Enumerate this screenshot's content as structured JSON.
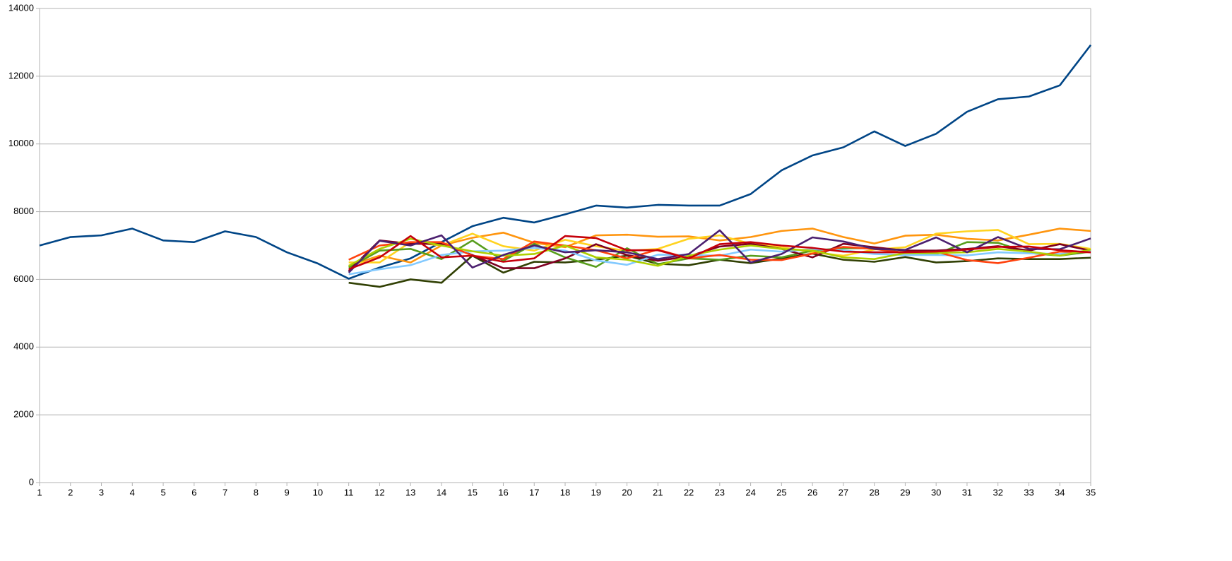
{
  "chart_data": {
    "type": "line",
    "x": [
      1,
      2,
      3,
      4,
      5,
      6,
      7,
      8,
      9,
      10,
      11,
      12,
      13,
      14,
      15,
      16,
      17,
      18,
      19,
      20,
      21,
      22,
      23,
      24,
      25,
      26,
      27,
      28,
      29,
      30,
      31,
      32,
      33,
      34,
      35
    ],
    "xlim": [
      1,
      35
    ],
    "xticks": [
      1,
      2,
      3,
      4,
      5,
      6,
      7,
      8,
      9,
      10,
      11,
      12,
      13,
      14,
      15,
      16,
      17,
      18,
      19,
      20,
      21,
      22,
      23,
      24,
      25,
      26,
      27,
      28,
      29,
      30,
      31,
      32,
      33,
      34,
      35
    ],
    "ylim": [
      0,
      14000
    ],
    "yticks": [
      0,
      2000,
      4000,
      6000,
      8000,
      10000,
      12000,
      14000
    ],
    "grid": true,
    "series": [
      {
        "color": "#004586",
        "values": [
          7000,
          7250,
          7300,
          7500,
          7150,
          7100,
          7420,
          7250,
          6800,
          6470,
          6020,
          6350,
          6620,
          7100,
          7570,
          7820,
          7680,
          7920,
          8180,
          8120,
          8200,
          8180,
          8180,
          8520,
          9220,
          9660,
          9900,
          10370,
          9940,
          10300,
          10950,
          11320,
          11400,
          11730,
          12920
        ]
      },
      {
        "color": "#314004",
        "values": [
          null,
          null,
          null,
          null,
          null,
          null,
          null,
          null,
          null,
          null,
          5900,
          5780,
          6000,
          5900,
          6700,
          6200,
          6520,
          6500,
          6580,
          6700,
          6460,
          6420,
          6580,
          6480,
          6620,
          6760,
          6580,
          6520,
          6660,
          6500,
          6540,
          6620,
          6600,
          6600,
          6640
        ]
      },
      {
        "color": "#ff950e",
        "values": [
          null,
          null,
          null,
          null,
          null,
          null,
          null,
          null,
          null,
          null,
          6400,
          6700,
          6500,
          7000,
          7230,
          7380,
          7080,
          6950,
          7300,
          7320,
          7260,
          7270,
          7150,
          7250,
          7430,
          7500,
          7250,
          7060,
          7290,
          7320,
          7200,
          7150,
          7320,
          7500,
          7430
        ]
      },
      {
        "color": "#ffd320",
        "values": [
          null,
          null,
          null,
          null,
          null,
          null,
          null,
          null,
          null,
          null,
          6500,
          6500,
          7100,
          7000,
          7350,
          6980,
          6850,
          7170,
          6980,
          6840,
          6900,
          7200,
          7300,
          7050,
          6950,
          6800,
          6700,
          6880,
          6950,
          7350,
          7420,
          7460,
          7040,
          7050,
          6900
        ]
      },
      {
        "color": "#579d1c",
        "values": [
          null,
          null,
          null,
          null,
          null,
          null,
          null,
          null,
          null,
          null,
          6350,
          6850,
          6900,
          6600,
          7150,
          6550,
          7050,
          6650,
          6370,
          6920,
          6450,
          6620,
          6580,
          6700,
          6650,
          6850,
          6920,
          6920,
          6780,
          6750,
          7100,
          7080,
          6780,
          6700,
          6820
        ]
      },
      {
        "color": "#7e0021",
        "values": [
          null,
          null,
          null,
          null,
          null,
          null,
          null,
          null,
          null,
          null,
          6250,
          7150,
          7050,
          7050,
          6720,
          6330,
          6330,
          6620,
          7040,
          6720,
          6550,
          6680,
          6970,
          7050,
          6900,
          6650,
          7050,
          6950,
          6850,
          6850,
          6900,
          6980,
          6850,
          7040,
          6850
        ]
      },
      {
        "color": "#83caff",
        "values": [
          null,
          null,
          null,
          null,
          null,
          null,
          null,
          null,
          null,
          null,
          6150,
          6300,
          6420,
          6720,
          6830,
          6850,
          6930,
          6850,
          6560,
          6430,
          6730,
          6720,
          6700,
          6880,
          6820,
          6890,
          6860,
          6750,
          6720,
          6720,
          6710,
          6800,
          6770,
          6750,
          6850
        ]
      },
      {
        "color": "#ff420e",
        "values": [
          null,
          null,
          null,
          null,
          null,
          null,
          null,
          null,
          null,
          null,
          6580,
          7000,
          7100,
          7100,
          6700,
          6600,
          7120,
          7000,
          6860,
          6620,
          6880,
          6620,
          6720,
          6580,
          6570,
          6760,
          6960,
          6900,
          6780,
          6820,
          6570,
          6480,
          6640,
          6820,
          6800
        ]
      },
      {
        "color": "#aecf00",
        "values": [
          null,
          null,
          null,
          null,
          null,
          null,
          null,
          null,
          null,
          null,
          6400,
          6900,
          7200,
          7000,
          6830,
          6700,
          6750,
          7000,
          6650,
          6580,
          6400,
          6700,
          6880,
          7000,
          6900,
          6850,
          6650,
          6600,
          6780,
          6780,
          6800,
          6900,
          6820,
          6700,
          6880
        ]
      },
      {
        "color": "#4b1f6f",
        "values": [
          null,
          null,
          null,
          null,
          null,
          null,
          null,
          null,
          null,
          null,
          6200,
          7140,
          7000,
          7300,
          6350,
          6720,
          7000,
          6800,
          6860,
          6800,
          6600,
          6750,
          7450,
          6500,
          6750,
          7240,
          7120,
          6900,
          6870,
          7240,
          6800,
          7250,
          6900,
          6890,
          7210
        ]
      },
      {
        "color": "#c5000b",
        "values": [
          null,
          null,
          null,
          null,
          null,
          null,
          null,
          null,
          null,
          null,
          6300,
          6650,
          7280,
          6650,
          6700,
          6520,
          6620,
          7280,
          7220,
          6860,
          6860,
          6620,
          7040,
          7100,
          7000,
          6930,
          6820,
          6800,
          6800,
          6820,
          6880,
          6960,
          6970,
          6860,
          6800
        ]
      }
    ]
  }
}
